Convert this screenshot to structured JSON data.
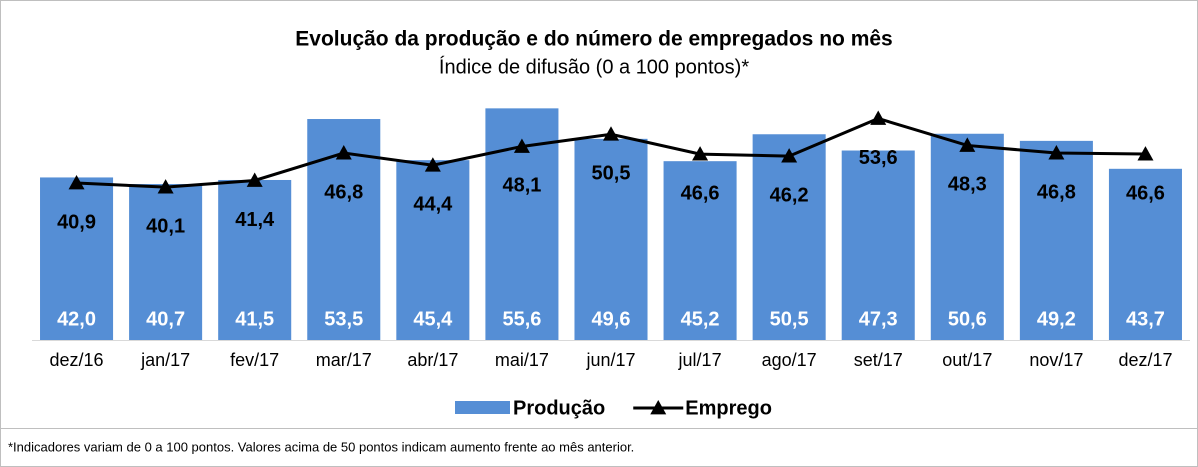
{
  "chart_data": {
    "type": "bar",
    "title": "Evolução da produção e do número de empregados no mês",
    "subtitle": "Índice de difusão (0 a 100 pontos)*",
    "categories": [
      "dez/16",
      "jan/17",
      "fev/17",
      "mar/17",
      "abr/17",
      "mai/17",
      "jun/17",
      "jul/17",
      "ago/17",
      "set/17",
      "out/17",
      "nov/17",
      "dez/17"
    ],
    "series": [
      {
        "name": "Produção",
        "type": "bar",
        "color": "#558ed5",
        "values": [
          42.0,
          40.7,
          41.5,
          53.5,
          45.4,
          55.6,
          49.6,
          45.2,
          50.5,
          47.3,
          50.6,
          49.2,
          43.7
        ],
        "value_labels": [
          "42,0",
          "40,7",
          "41,5",
          "53,5",
          "45,4",
          "55,6",
          "49,6",
          "45,2",
          "50,5",
          "47,3",
          "50,6",
          "49,2",
          "43,7"
        ]
      },
      {
        "name": "Emprego",
        "type": "line",
        "color": "#000000",
        "values": [
          40.9,
          40.1,
          41.4,
          46.8,
          44.4,
          48.1,
          50.5,
          46.6,
          46.2,
          53.6,
          48.3,
          46.8,
          46.6
        ],
        "value_labels": [
          "40,9",
          "40,1",
          "41,4",
          "46,8",
          "44,4",
          "48,1",
          "50,5",
          "46,6",
          "46,2",
          "53,6",
          "48,3",
          "46,8",
          "46,6"
        ]
      }
    ],
    "ylim": [
      10,
      60
    ],
    "footnote": "*Indicadores variam de 0 a 100 pontos. Valores acima de 50 pontos indicam aumento frente ao mês anterior."
  }
}
